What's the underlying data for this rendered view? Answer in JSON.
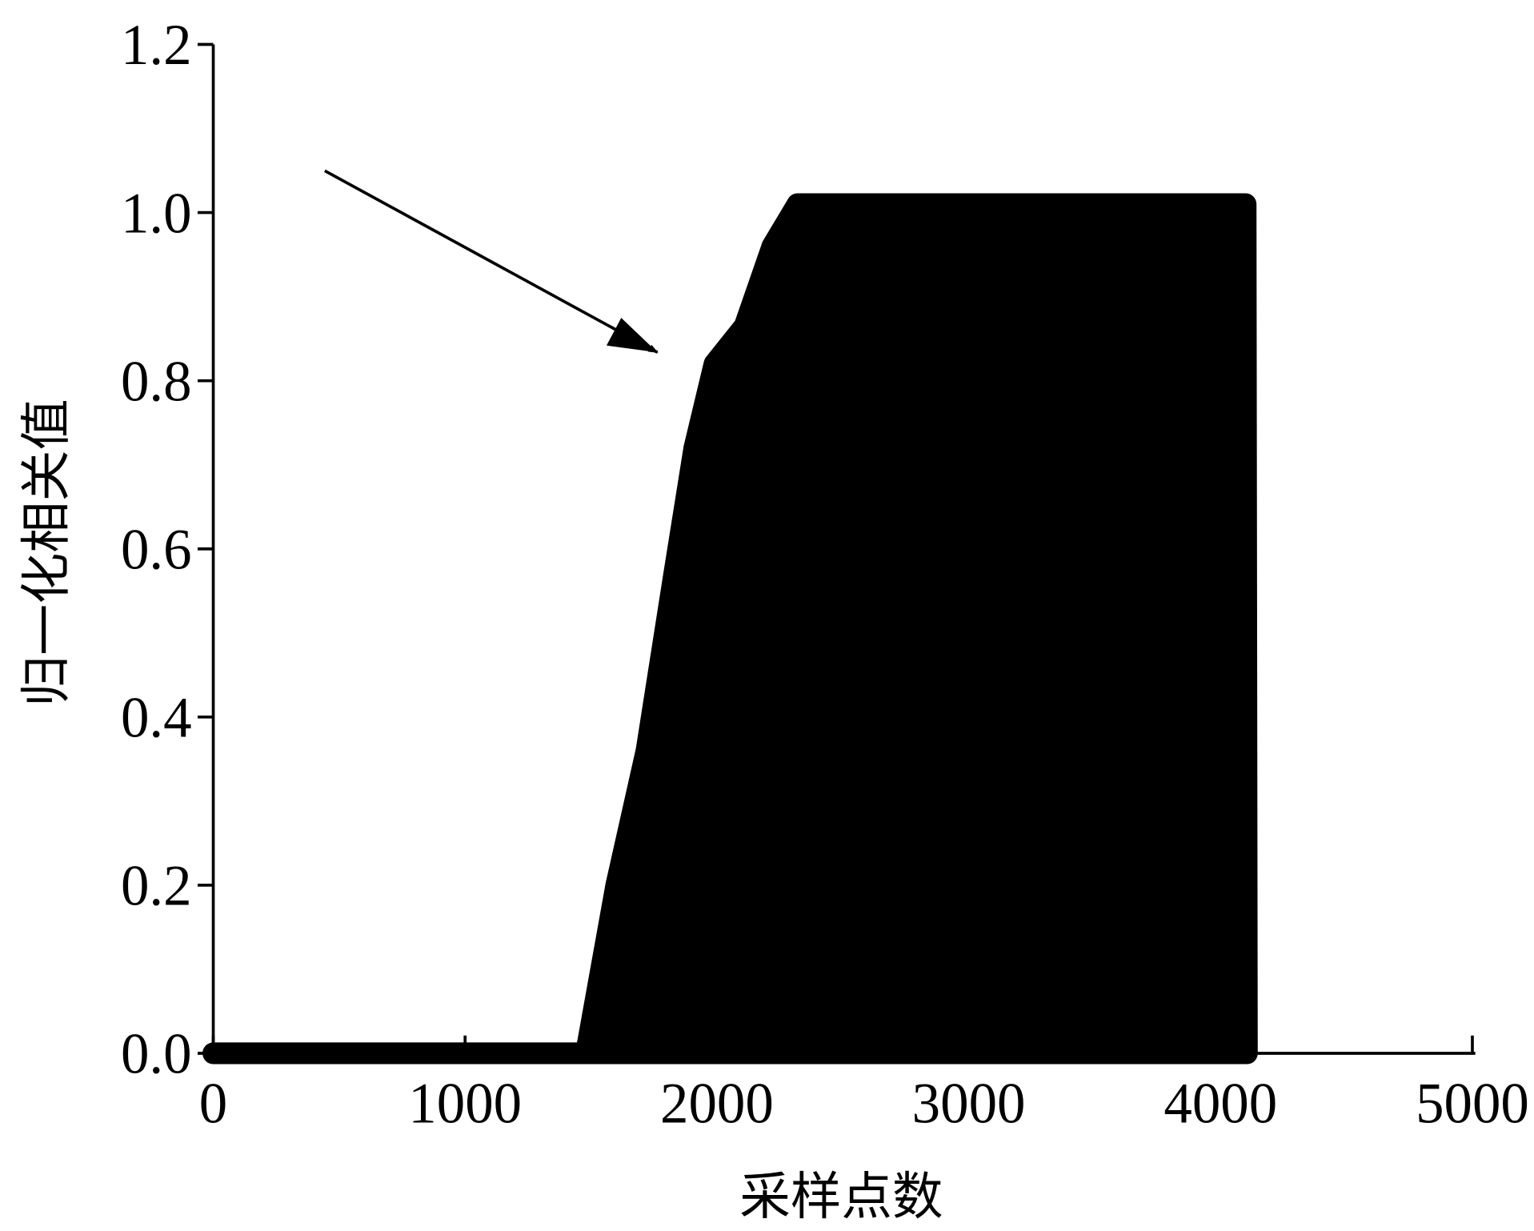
{
  "chart_data": {
    "type": "area",
    "x_label": "采样点数",
    "y_label": "归一化相关值",
    "x": [
      0,
      1480,
      1540,
      1600,
      1720,
      1830,
      1910,
      1990,
      2110,
      2220,
      2320,
      4100,
      4105
    ],
    "y": [
      0,
      0,
      0.1,
      0.2,
      0.36,
      0.57,
      0.72,
      0.82,
      0.865,
      0.96,
      1.01,
      1.01,
      0
    ],
    "color": "#000000",
    "xlim": [
      0,
      5000
    ],
    "xticks": [
      0,
      1000,
      2000,
      3000,
      4000,
      5000
    ],
    "ylim": [
      0,
      1.2
    ],
    "yticks": [
      {
        "value": 0,
        "label": "0.0"
      },
      0.2,
      0.4,
      0.6,
      0.8,
      {
        "value": 1,
        "label": "1.0"
      },
      1.2
    ]
  }
}
